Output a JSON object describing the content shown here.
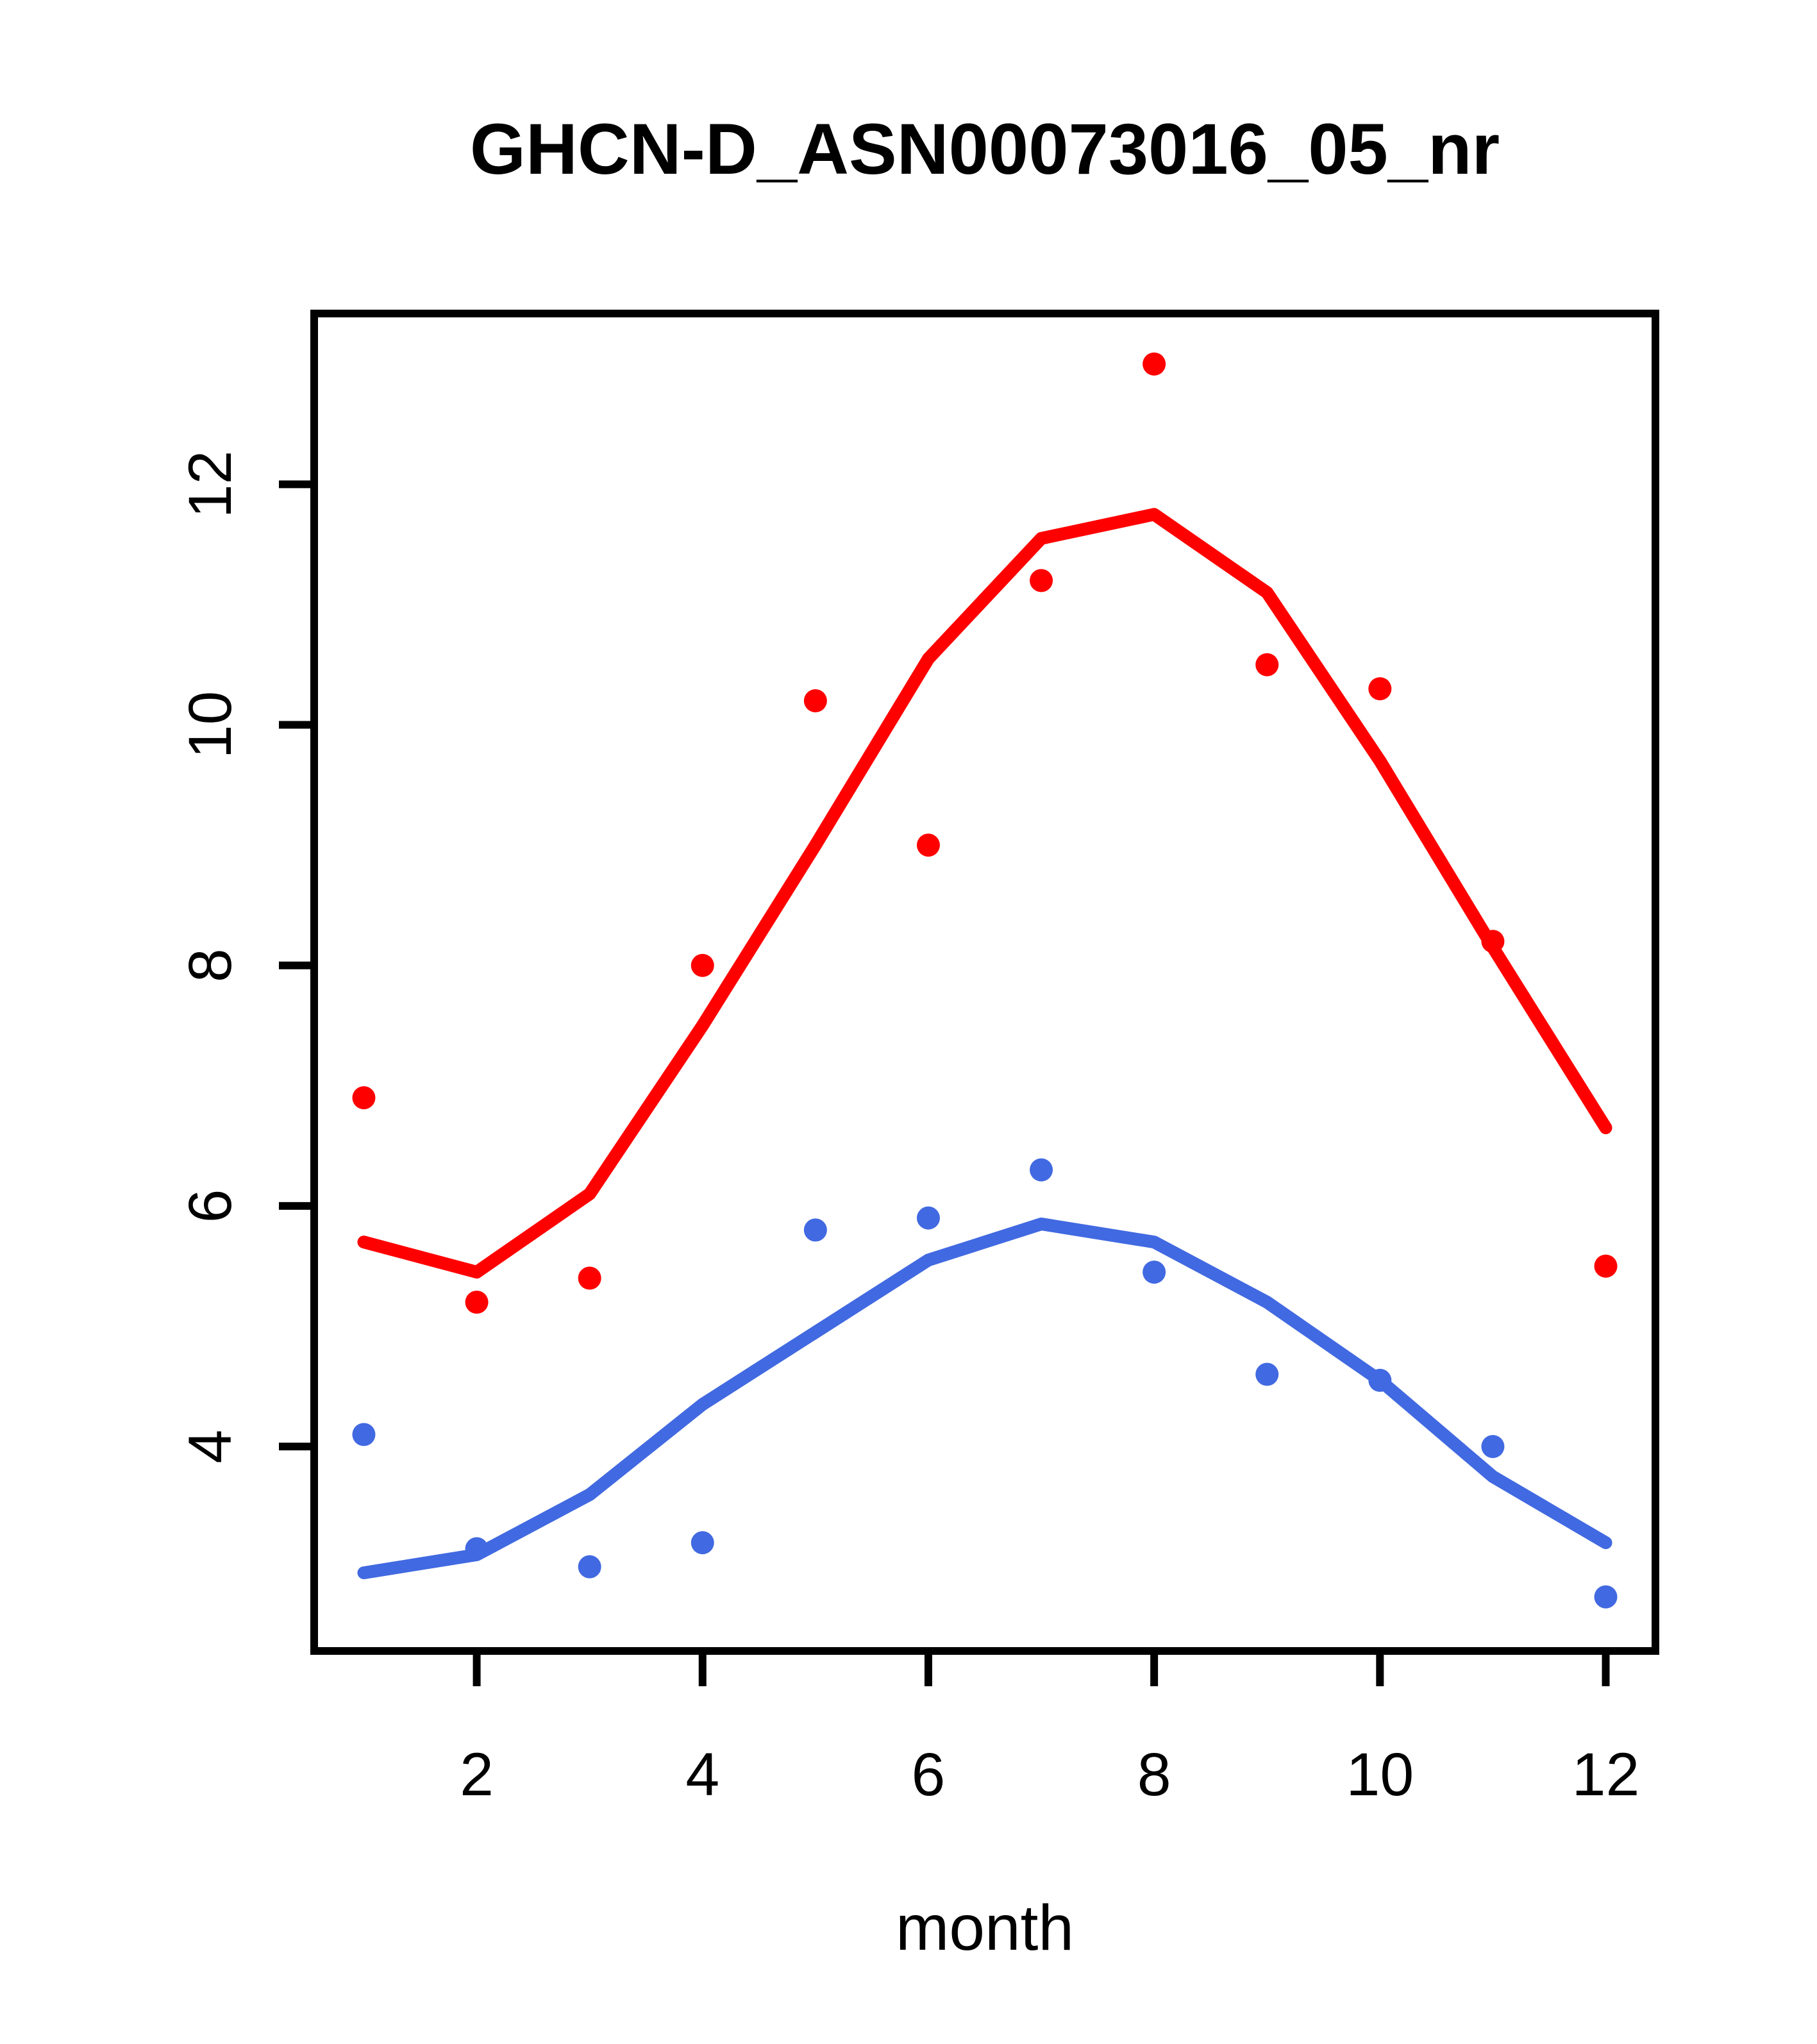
{
  "chart_data": {
    "type": "scatter",
    "title": "GHCN-D_ASN00073016_05_nr",
    "xlabel": "month",
    "ylabel": "",
    "x": [
      1,
      2,
      3,
      4,
      5,
      6,
      7,
      8,
      9,
      10,
      11,
      12
    ],
    "xlim": [
      0.56,
      12.44
    ],
    "ylim": [
      2.3,
      13.42
    ],
    "xticks": [
      2,
      4,
      6,
      8,
      10,
      12
    ],
    "yticks": [
      4,
      6,
      8,
      10,
      12
    ],
    "grid": false,
    "legend": "none",
    "colors": {
      "red": "#ff0000",
      "blue": "#4169e1",
      "axis": "#000000"
    },
    "series": [
      {
        "name": "red-points",
        "kind": "points",
        "color": "#ff0000",
        "values": [
          6.9,
          5.2,
          5.4,
          8.0,
          10.2,
          9.0,
          11.2,
          13.0,
          10.5,
          10.3,
          8.2,
          5.5
        ]
      },
      {
        "name": "red-smooth",
        "kind": "line",
        "color": "#ff0000",
        "values": [
          5.7,
          5.45,
          6.1,
          7.5,
          9.0,
          10.55,
          11.55,
          11.75,
          11.1,
          9.7,
          8.15,
          6.65
        ]
      },
      {
        "name": "blue-points",
        "kind": "points",
        "color": "#4169e1",
        "values": [
          4.1,
          3.15,
          3.0,
          3.2,
          5.8,
          5.9,
          6.3,
          5.45,
          4.6,
          4.55,
          4.0,
          2.75
        ]
      },
      {
        "name": "blue-smooth",
        "kind": "line",
        "color": "#4169e1",
        "values": [
          2.95,
          3.1,
          3.6,
          4.35,
          4.95,
          5.55,
          5.85,
          5.7,
          5.2,
          4.55,
          3.75,
          3.2
        ]
      }
    ]
  }
}
